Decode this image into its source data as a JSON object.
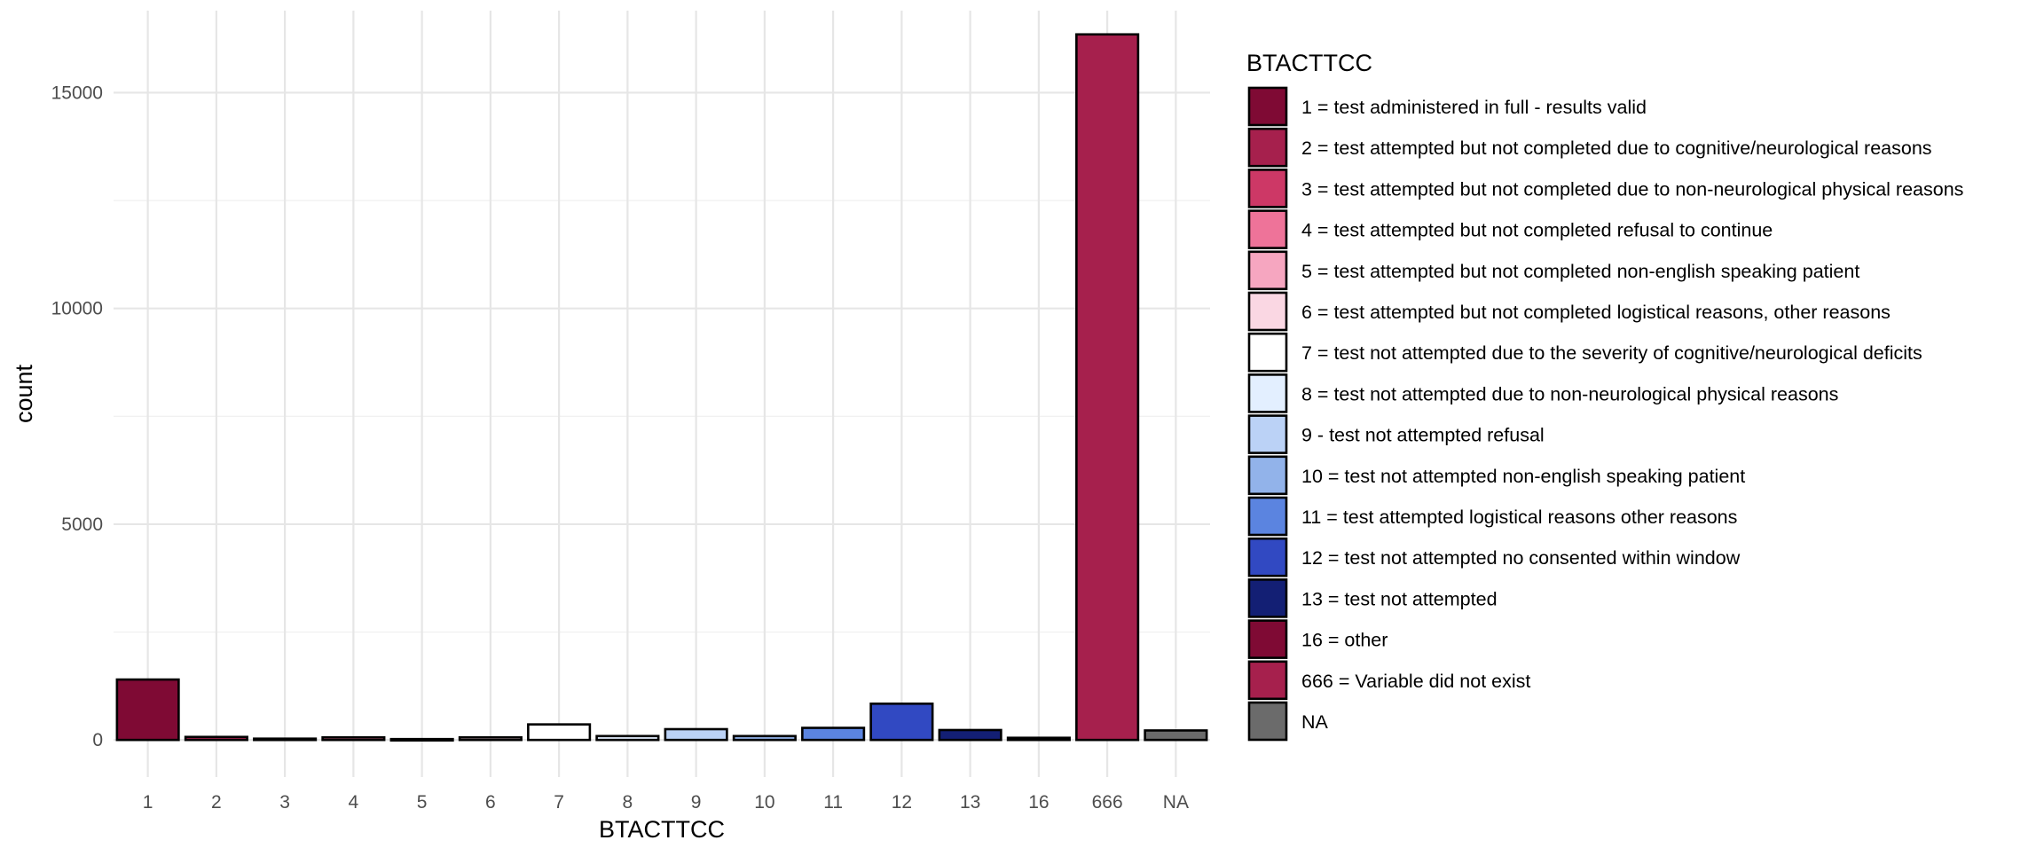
{
  "chart_data": {
    "type": "bar",
    "title": "",
    "xlabel": "BTACTTCC",
    "ylabel": "count",
    "categories": [
      "1",
      "2",
      "3",
      "4",
      "5",
      "6",
      "7",
      "8",
      "9",
      "10",
      "11",
      "12",
      "13",
      "16",
      "666",
      "NA"
    ],
    "values": [
      1400,
      70,
      30,
      60,
      20,
      60,
      360,
      90,
      250,
      90,
      280,
      840,
      230,
      50,
      16350,
      220
    ],
    "bar_colors": [
      "#7f0a34",
      "#a6204d",
      "#cd3866",
      "#ee7399",
      "#f6a6c0",
      "#fad7e3",
      "#ffffff",
      "#e3efff",
      "#bbd2f6",
      "#92b3ea",
      "#5b84e0",
      "#3149c2",
      "#131f74",
      "#7f0a34",
      "#a6204d",
      "#6b6b6b"
    ],
    "ylim": [
      -860,
      16900
    ],
    "y_ticks": [
      0,
      5000,
      10000,
      15000
    ],
    "y_tick_labels": [
      "0",
      "5000",
      "10000",
      "15000"
    ],
    "grid": true,
    "legend": {
      "title": "BTACTTCC",
      "placement": "right",
      "entries": [
        "1 = test administered in full - results valid",
        "2 = test attempted but not completed due to cognitive/neurological reasons",
        "3 = test attempted but not completed due to non-neurological physical reasons",
        "4 = test attempted but not completed refusal to continue",
        "5 = test attempted but not completed non-english speaking patient",
        "6 = test attempted but not completed logistical reasons, other reasons",
        "7 = test not attempted due to the severity of cognitive/neurological deficits",
        "8 = test not attempted due to non-neurological physical reasons",
        "9 - test not attempted refusal",
        "10 = test not attempted non-english speaking patient",
        "11 = test attempted logistical reasons other reasons",
        "12 = test not attempted no consented within window",
        "13 = test not attempted",
        "16 = other",
        "666 = Variable did not exist",
        "NA"
      ]
    }
  }
}
